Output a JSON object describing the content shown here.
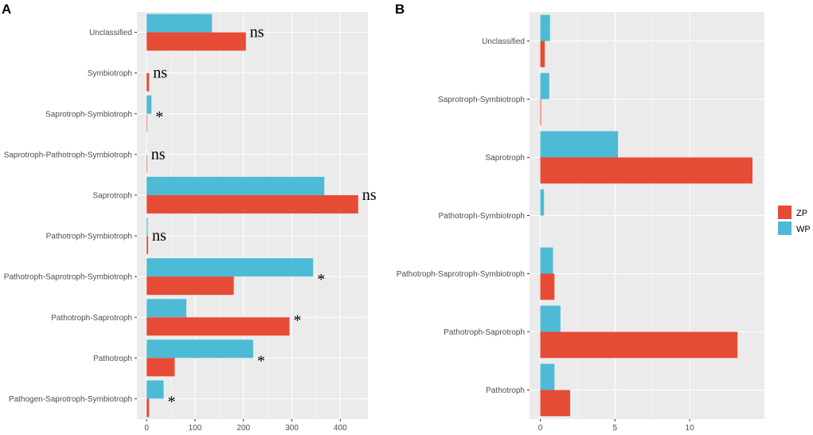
{
  "colors": {
    "ZP": "#E64B35",
    "WP": "#4DBBD5",
    "panel_bg": "#EBEBEB",
    "grid": "#FFFFFF"
  },
  "legend": [
    {
      "name": "ZP",
      "color": "#E64B35"
    },
    {
      "name": "WP",
      "color": "#4DBBD5"
    }
  ],
  "chart_data": [
    {
      "panel": "A",
      "type": "bar",
      "orientation": "horizontal",
      "categories": [
        "Pathogen-Saprotroph-Symbiotroph",
        "Pathotroph",
        "Pathotroph-Saprotroph",
        "Pathotroph-Saprotroph-Symbiotroph",
        "Pathotroph-Symbiotroph",
        "Saprotroph",
        "Saprotroph-Pathotroph-Symbiotroph",
        "Saprotroph-Symbiotroph",
        "Symbiotroph",
        "Unclassified"
      ],
      "series": [
        {
          "name": "ZP",
          "values": [
            5,
            58,
            295,
            180,
            3,
            437,
            1,
            1,
            5,
            205
          ]
        },
        {
          "name": "WP",
          "values": [
            35,
            220,
            82,
            344,
            2,
            367,
            0,
            10,
            0,
            135
          ]
        }
      ],
      "significance": [
        "*",
        "*",
        "*",
        "*",
        "ns",
        "ns",
        "ns",
        "*",
        "ns",
        "ns"
      ],
      "xlim": [
        -20,
        457
      ],
      "xticks": [
        0,
        100,
        200,
        300,
        400
      ]
    },
    {
      "panel": "B",
      "type": "bar",
      "orientation": "horizontal",
      "categories": [
        "Pathotroph",
        "Pathotroph-Saprotroph",
        "Pathotroph-Saprotroph-Symbiotroph",
        "Pathotroph-Symbiotroph",
        "Saprotroph",
        "Saprotroph-Symbiotroph",
        "Unclassified"
      ],
      "series": [
        {
          "name": "ZP",
          "values": [
            2.0,
            13.2,
            0.95,
            0.0,
            14.2,
            0.05,
            0.3
          ]
        },
        {
          "name": "WP",
          "values": [
            0.95,
            1.35,
            0.85,
            0.25,
            5.2,
            0.6,
            0.65
          ]
        }
      ],
      "xlim": [
        -0.72,
        15.0
      ],
      "xticks": [
        0,
        5,
        10
      ]
    }
  ]
}
